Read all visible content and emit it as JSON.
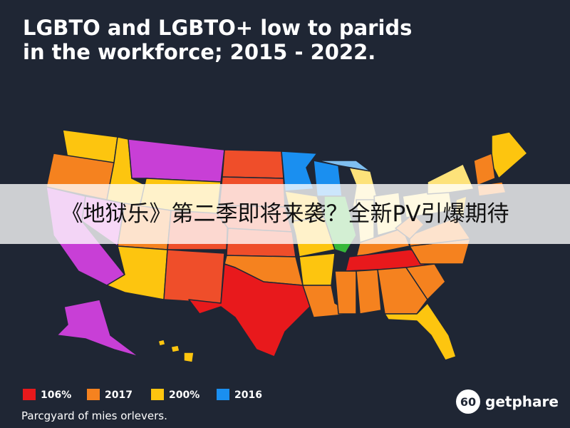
{
  "header": {
    "title_lines": [
      "LGBTO and LGBTO+ low to parids",
      "in the workforce; 2015 - 2022."
    ]
  },
  "banner": {
    "text": "《地狱乐》第二季即将来袭？全新PV引爆期待"
  },
  "legend": {
    "items": [
      {
        "label": "106%",
        "color": "#e8191c"
      },
      {
        "label": "2017",
        "color": "#f5821f"
      },
      {
        "label": "200%",
        "color": "#fdc50f"
      },
      {
        "label": "2016",
        "color": "#1a8ff0"
      }
    ]
  },
  "footer": {
    "note": "Parcgyard of mies orlevers."
  },
  "logo": {
    "badge": "60",
    "name": "getphare"
  }
}
